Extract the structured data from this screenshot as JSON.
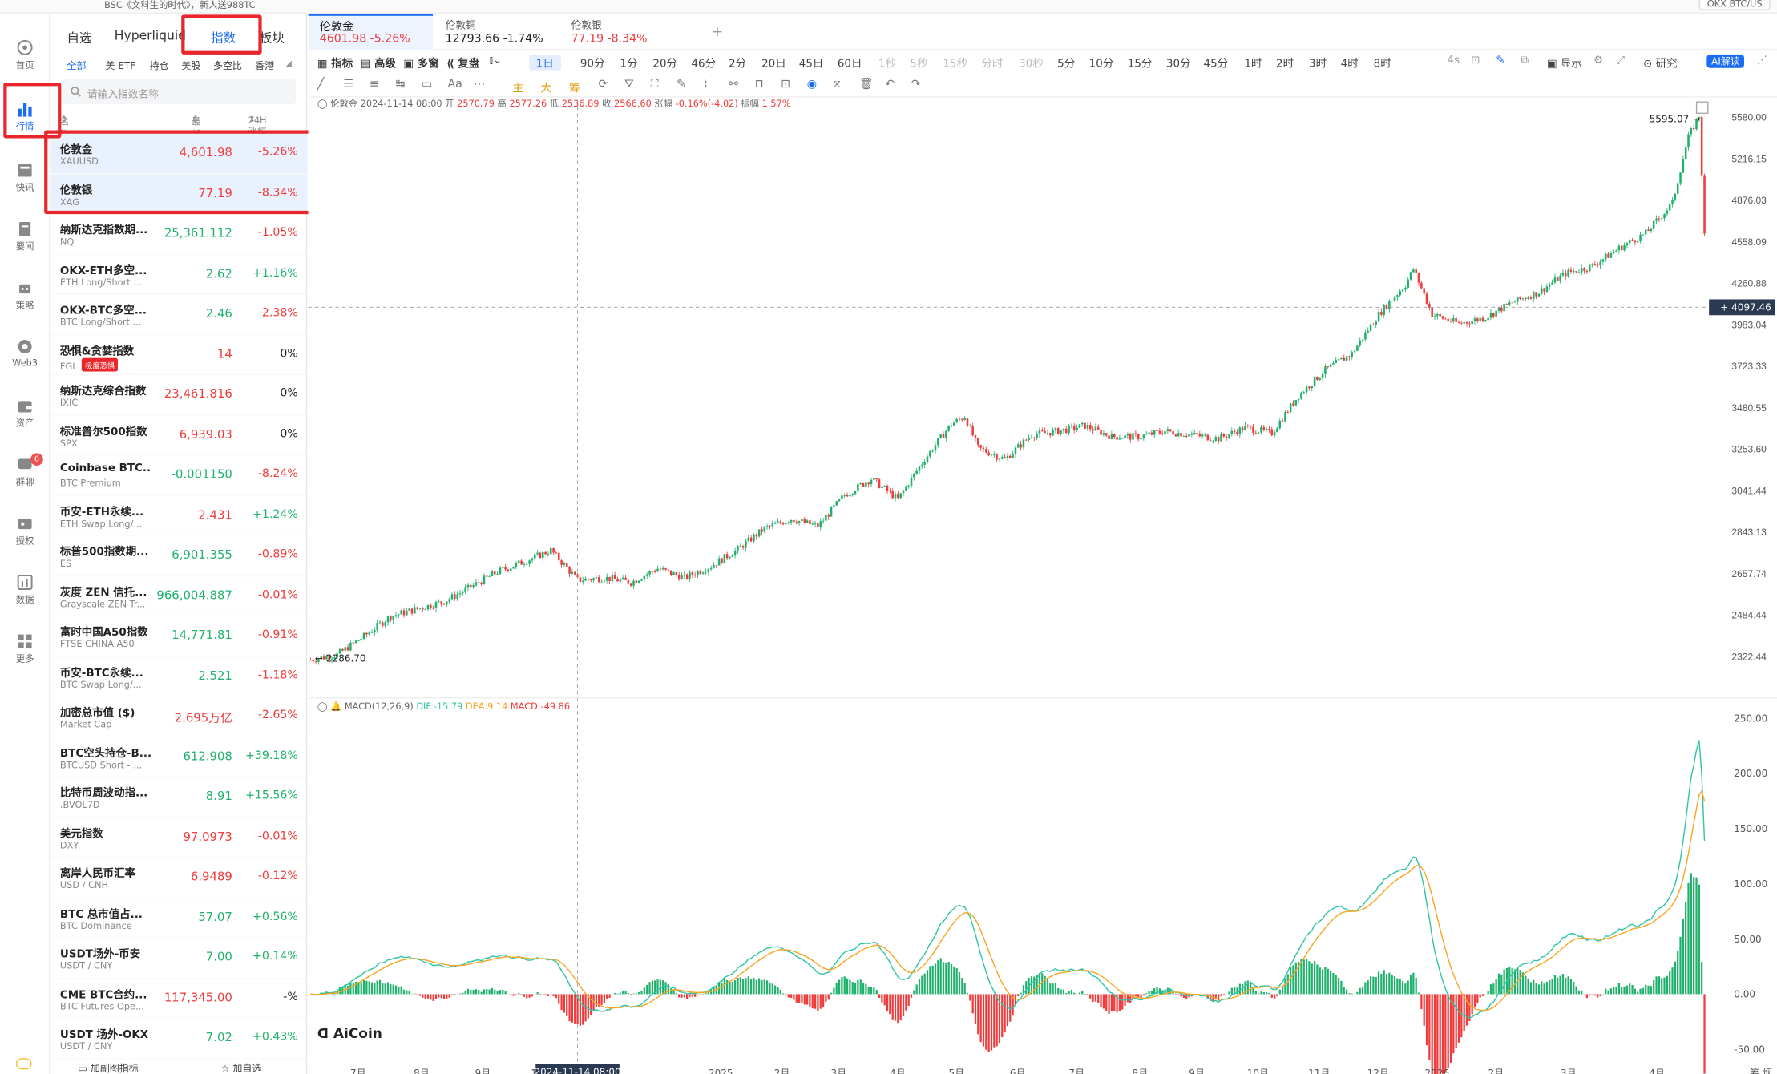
{
  "topbar": {
    "ticker": "BSC《文科生的时代》，新人送988TC",
    "okx": "OKX BTC/US"
  },
  "rail": [
    {
      "label": "首页",
      "icon": "home-icon"
    },
    {
      "label": "行情",
      "icon": "market-chart-icon"
    },
    {
      "label": "快讯",
      "icon": "news-flash-icon"
    },
    {
      "label": "要闻",
      "icon": "headline-icon"
    },
    {
      "label": "策略",
      "icon": "robot-icon"
    },
    {
      "label": "Web3",
      "icon": "web3-icon"
    },
    {
      "label": "资产",
      "icon": "wallet-icon"
    },
    {
      "label": "群聊",
      "icon": "chat-icon",
      "badge": "6"
    },
    {
      "label": "授权",
      "icon": "key-icon"
    },
    {
      "label": "数据",
      "icon": "data-icon"
    },
    {
      "label": "更多",
      "icon": "grid-more-icon"
    }
  ],
  "panel": {
    "tabs": [
      "自选",
      "Hyperliquid",
      "指数",
      "板块"
    ],
    "subtabs": [
      "全部",
      "美 ETF",
      "持仓",
      "美股",
      "多空比",
      "香港"
    ],
    "search_placeholder": "请输入指数名称",
    "cols": [
      "名称",
      "最新价",
      "24H涨幅"
    ],
    "rows": [
      {
        "name": "伦敦金",
        "sub": "XAUUSD",
        "price": "4,601.98",
        "change": "-5.26%",
        "dir": "dn"
      },
      {
        "name": "伦敦银",
        "sub": "XAG",
        "price": "77.19",
        "change": "-8.34%",
        "dir": "dn"
      },
      {
        "name": "纳斯达克指数期...",
        "sub": "NQ",
        "price": "25,361.112",
        "change": "-1.05%",
        "dir": "dn",
        "pdir": "up"
      },
      {
        "name": "OKX-ETH多空...",
        "sub": "ETH Long/Short ...",
        "price": "2.62",
        "change": "+1.16%",
        "dir": "up"
      },
      {
        "name": "OKX-BTC多空...",
        "sub": "BTC Long/Short ...",
        "price": "2.46",
        "change": "-2.38%",
        "dir": "dn",
        "pdir": "up"
      },
      {
        "name": "恐惧&贪婪指数",
        "sub": "FGI",
        "badge": "极度恐惧",
        "price": "14",
        "change": "0%",
        "dir": "flat",
        "pdir": "dn"
      },
      {
        "name": "纳斯达克综合指数",
        "sub": "IXIC",
        "price": "23,461.816",
        "change": "0%",
        "dir": "flat",
        "pdir": "dn"
      },
      {
        "name": "标准普尔500指数",
        "sub": "SPX",
        "price": "6,939.03",
        "change": "0%",
        "dir": "flat",
        "pdir": "dn"
      },
      {
        "name": "Coinbase BTC...",
        "sub": "BTC Premium",
        "price": "-0.001150",
        "change": "-8.24%",
        "dir": "dn",
        "pdir": "up"
      },
      {
        "name": "币安-ETH永续...",
        "sub": "ETH Swap Long/...",
        "price": "2.431",
        "change": "+1.24%",
        "dir": "up",
        "pdir": "dn"
      },
      {
        "name": "标普500指数期...",
        "sub": "ES",
        "price": "6,901.355",
        "change": "-0.89%",
        "dir": "dn",
        "pdir": "up"
      },
      {
        "name": "灰度 ZEN 信托...",
        "sub": "Grayscale ZEN Tr...",
        "price": "966,004.887",
        "change": "-0.01%",
        "dir": "dn",
        "pdir": "up"
      },
      {
        "name": "富时中国A50指数",
        "sub": "FTSE CHINA A50",
        "price": "14,771.81",
        "change": "-0.91%",
        "dir": "dn",
        "pdir": "up"
      },
      {
        "name": "币安-BTC永续...",
        "sub": "BTC Swap Long/...",
        "price": "2.521",
        "change": "-1.18%",
        "dir": "dn",
        "pdir": "up"
      },
      {
        "name": "加密总市值 ($)",
        "sub": "Market Cap",
        "price": "2.695万亿",
        "change": "-2.65%",
        "dir": "dn",
        "pdir": "dn"
      },
      {
        "name": "BTC空头持仓-B...",
        "sub": "BTCUSD Short - ...",
        "price": "612.908",
        "change": "+39.18%",
        "dir": "up"
      },
      {
        "name": "比特币周波动指...",
        "sub": ".BVOL7D",
        "price": "8.91",
        "change": "+15.56%",
        "dir": "up"
      },
      {
        "name": "美元指数",
        "sub": "DXY",
        "price": "97.0973",
        "change": "-0.01%",
        "dir": "dn"
      },
      {
        "name": "离岸人民币汇率",
        "sub": "USD / CNH",
        "price": "6.9489",
        "change": "-0.12%",
        "dir": "dn"
      },
      {
        "name": "BTC 总市值占...",
        "sub": "BTC Dominance",
        "price": "57.07",
        "change": "+0.56%",
        "dir": "up"
      },
      {
        "name": "USDT场外-币安",
        "sub": "USDT / CNY",
        "price": "7.00",
        "change": "+0.14%",
        "dir": "up"
      },
      {
        "name": "CME BTC合约...",
        "sub": "BTC Futures Ope...",
        "price": "117,345.00",
        "change": "-%",
        "dir": "flat",
        "pdir": "dn"
      },
      {
        "name": "USDT 场外-OKX",
        "sub": "USDT / CNY",
        "price": "7.02",
        "change": "+0.43%",
        "dir": "up"
      }
    ],
    "bottom": [
      "加副图指标",
      "加自选"
    ]
  },
  "chart": {
    "tabs": [
      {
        "title": "伦敦金",
        "value": "4601.98 -5.26%",
        "dir": "dn"
      },
      {
        "title": "伦敦铜",
        "value": "12793.66 -1.74%",
        "dir": "flat"
      },
      {
        "title": "伦敦银",
        "value": "77.19 -8.34%",
        "dir": "dn"
      }
    ],
    "toolbar": {
      "left": [
        "指标",
        "高级",
        "多窗",
        "复盘"
      ],
      "interval": "1日",
      "intervals": [
        "90分",
        "1分",
        "20分",
        "46分",
        "2分",
        "20日",
        "45日",
        "60日"
      ],
      "dim": [
        "1秒",
        "5秒",
        "15秒",
        "分时",
        "30秒"
      ],
      "intervals2": [
        "5分",
        "10分",
        "15分",
        "30分",
        "45分",
        "1时",
        "2时",
        "3时",
        "4时",
        "8时"
      ],
      "right": [
        "4s",
        "显示",
        "研究",
        "AI解读"
      ]
    },
    "drawtools": [
      "主",
      "大",
      "筹"
    ],
    "ohlc": {
      "name": "伦敦金",
      "date": "2024-11-14 08:00",
      "open": "2570.79",
      "high": "2577.26",
      "low": "2536.89",
      "close": "2566.60",
      "chg": "-0.16%(-4.02)",
      "amp": "1.57%"
    },
    "macd": {
      "label": "MACD(12,26,9)",
      "dif": "DIF:-15.79",
      "dea": "DEA:9.14",
      "macd": "MACD:-49.86"
    },
    "logo": "AiCoin",
    "price_axis": [
      "5580.00",
      "5216.15",
      "4876.03",
      "4558.09",
      "4260.88",
      "3983.04",
      "3723.33",
      "3480.55",
      "3253.60",
      "3041.44",
      "2843.13",
      "2657.74",
      "2484.44",
      "2322.44"
    ],
    "macd_axis": [
      "250.00",
      "200.00",
      "150.00",
      "100.00",
      "50.00",
      "0.00",
      "-50.00"
    ],
    "time_axis": [
      "7月",
      "8月",
      "9月",
      "10月",
      "2025",
      "2月",
      "3月",
      "4月",
      "5月",
      "6月",
      "7月",
      "8月",
      "9月",
      "10月",
      "11月",
      "12月",
      "2026",
      "2月",
      "3月",
      "4月"
    ],
    "crosshair_date": "2024-11-14 08:00",
    "crosshair_price": "4097.46",
    "hi_label": "5595.07",
    "lo_label": "2286.70",
    "corner": "筹 烟"
  },
  "colors": {
    "up": "#20b26c",
    "down": "#ef3b3b",
    "accent": "#1a6cf0",
    "dif": "#2fc4a6",
    "dea": "#f5a623"
  },
  "chart_data": {
    "type": "candlestick",
    "title": "伦敦金 XAUUSD 1日",
    "keyframes": [
      [
        0,
        2310
      ],
      [
        10,
        2330
      ],
      [
        20,
        2400
      ],
      [
        30,
        2480
      ],
      [
        40,
        2510
      ],
      [
        50,
        2540
      ],
      [
        60,
        2600
      ],
      [
        70,
        2665
      ],
      [
        80,
        2710
      ],
      [
        90,
        2760
      ],
      [
        100,
        2630
      ],
      [
        110,
        2640
      ],
      [
        120,
        2620
      ],
      [
        130,
        2680
      ],
      [
        140,
        2640
      ],
      [
        150,
        2690
      ],
      [
        160,
        2765
      ],
      [
        170,
        2860
      ],
      [
        180,
        2905
      ],
      [
        190,
        2870
      ],
      [
        200,
        3020
      ],
      [
        210,
        3100
      ],
      [
        220,
        3000
      ],
      [
        230,
        3200
      ],
      [
        240,
        3390
      ],
      [
        245,
        3430
      ],
      [
        250,
        3260
      ],
      [
        260,
        3200
      ],
      [
        270,
        3330
      ],
      [
        280,
        3350
      ],
      [
        290,
        3380
      ],
      [
        300,
        3320
      ],
      [
        310,
        3320
      ],
      [
        320,
        3350
      ],
      [
        330,
        3330
      ],
      [
        340,
        3310
      ],
      [
        350,
        3370
      ],
      [
        360,
        3340
      ],
      [
        370,
        3550
      ],
      [
        380,
        3700
      ],
      [
        390,
        3800
      ],
      [
        400,
        4050
      ],
      [
        410,
        4250
      ],
      [
        413,
        4360
      ],
      [
        420,
        4050
      ],
      [
        430,
        3990
      ],
      [
        440,
        4030
      ],
      [
        450,
        4130
      ],
      [
        460,
        4200
      ],
      [
        470,
        4330
      ],
      [
        480,
        4380
      ],
      [
        490,
        4510
      ],
      [
        500,
        4620
      ],
      [
        510,
        4850
      ],
      [
        516,
        5400
      ],
      [
        520,
        5595
      ],
      [
        522,
        4600
      ]
    ],
    "ylim": [
      2286.7,
      5595.07
    ]
  }
}
